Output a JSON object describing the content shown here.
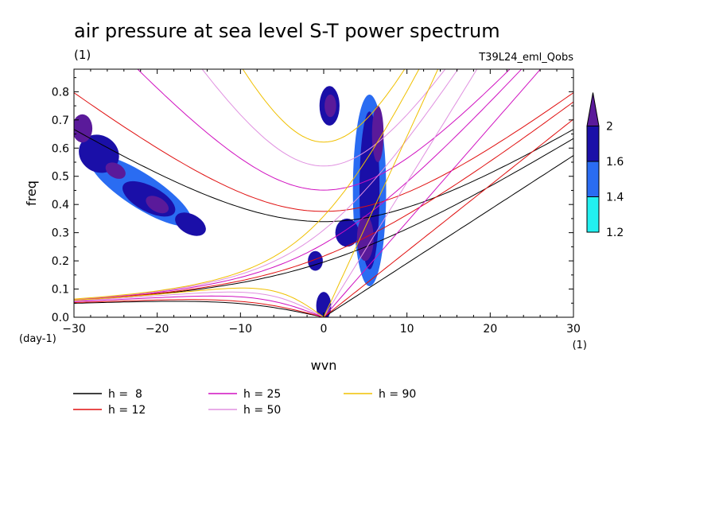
{
  "chart_data": {
    "type": "heatmap",
    "title": "air pressure at sea level S-T power spectrum",
    "units": "(1)",
    "run_label": "T39L24_eml_Qobs",
    "xlabel": "wvn",
    "ylabel": "freq",
    "y_unit": "(day-1)",
    "x_unit": "(1)",
    "xlim": [
      -30,
      30
    ],
    "ylim": [
      0,
      0.88
    ],
    "x_ticks": [
      -30,
      -20,
      -10,
      0,
      10,
      20,
      30
    ],
    "x_tick_labels": [
      "−30",
      "−20",
      "−10",
      "0",
      "10",
      "20",
      "30"
    ],
    "y_ticks": [
      0,
      0.1,
      0.2,
      0.3,
      0.4,
      0.5,
      0.6,
      0.7,
      0.8
    ],
    "y_tick_labels": [
      "0.0",
      "0.1",
      "0.2",
      "0.3",
      "0.4",
      "0.5",
      "0.6",
      "0.7",
      "0.8"
    ],
    "grid": false,
    "colorbar": {
      "levels": [
        "1.2",
        "1.4",
        "1.6",
        "2"
      ],
      "colors": [
        "#22f0f0",
        "#2a6cf2",
        "#1a0fa8",
        "#5a1a9a"
      ],
      "extend": "max"
    },
    "contour_blobs": [
      {
        "cx": -22,
        "cy": 0.45,
        "sx": 1.5,
        "sy": 0.04,
        "angle": 33,
        "level": 3
      },
      {
        "cx": -22,
        "cy": 0.45,
        "sx": 7.2,
        "sy": 0.06,
        "angle": 33,
        "level": 1
      },
      {
        "cx": -27,
        "cy": 0.58,
        "sx": 2.5,
        "sy": 0.065,
        "angle": 33,
        "level": 2
      },
      {
        "cx": -21,
        "cy": 0.42,
        "sx": 3.5,
        "sy": 0.045,
        "angle": 28,
        "level": 2
      },
      {
        "cx": -16,
        "cy": 0.33,
        "sx": 2.0,
        "sy": 0.035,
        "angle": 28,
        "level": 2
      },
      {
        "cx": -29,
        "cy": 0.67,
        "sx": 1.2,
        "sy": 0.05,
        "angle": 0,
        "level": 3
      },
      {
        "cx": -25,
        "cy": 0.52,
        "sx": 1.3,
        "sy": 0.025,
        "angle": 30,
        "level": 3
      },
      {
        "cx": -20,
        "cy": 0.4,
        "sx": 1.5,
        "sy": 0.025,
        "angle": 30,
        "level": 3
      },
      {
        "cx": 0.7,
        "cy": 0.75,
        "sx": 1.2,
        "sy": 0.07,
        "angle": 0,
        "level": 2
      },
      {
        "cx": 0.8,
        "cy": 0.75,
        "sx": 0.7,
        "sy": 0.04,
        "angle": 0,
        "level": 3
      },
      {
        "cx": 5.5,
        "cy": 0.45,
        "sx": 2.0,
        "sy": 0.34,
        "angle": 0,
        "level": 1
      },
      {
        "cx": 5.5,
        "cy": 0.45,
        "sx": 1.2,
        "sy": 0.28,
        "angle": 0,
        "level": 2
      },
      {
        "cx": 6.5,
        "cy": 0.65,
        "sx": 0.7,
        "sy": 0.1,
        "angle": 0,
        "level": 3
      },
      {
        "cx": 2.8,
        "cy": 0.3,
        "sx": 1.4,
        "sy": 0.05,
        "angle": 0,
        "level": 2
      },
      {
        "cx": -1,
        "cy": 0.2,
        "sx": 0.9,
        "sy": 0.035,
        "angle": 0,
        "level": 2
      },
      {
        "cx": 0,
        "cy": 0.04,
        "sx": 0.9,
        "sy": 0.05,
        "angle": 0,
        "level": 2
      },
      {
        "cx": 5.0,
        "cy": 0.28,
        "sx": 1.0,
        "sy": 0.08,
        "angle": 0,
        "level": 3
      }
    ],
    "dispersion_curves": [
      {
        "name": "h =  8",
        "color": "#000000",
        "he": 8
      },
      {
        "name": "h = 12",
        "color": "#e01010",
        "he": 12
      },
      {
        "name": "h = 25",
        "color": "#d010c0",
        "he": 25
      },
      {
        "name": "h = 50",
        "color": "#e090e0",
        "he": 50
      },
      {
        "name": "h = 90",
        "color": "#f0c000",
        "he": 90
      }
    ]
  }
}
